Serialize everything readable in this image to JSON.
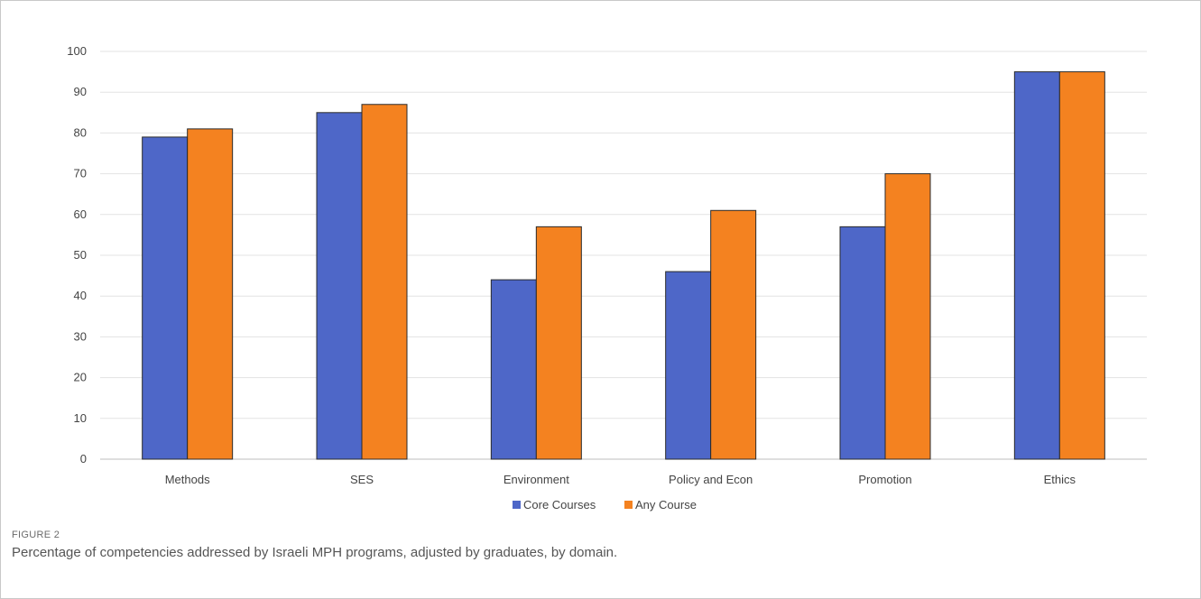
{
  "figure": {
    "label": "FIGURE 2",
    "caption": "Percentage of competencies addressed by Israeli MPH programs, adjusted by graduates, by domain."
  },
  "colors": {
    "core": "#4E67C8",
    "any": "#F48220",
    "grid": "#e3e3e3",
    "text": "#444444"
  },
  "chart_data": {
    "type": "bar",
    "categories": [
      "Methods",
      "SES",
      "Environment",
      "Policy and Econ",
      "Promotion",
      "Ethics"
    ],
    "series": [
      {
        "name": "Core Courses",
        "values": [
          79,
          85,
          44,
          46,
          57,
          95
        ]
      },
      {
        "name": "Any Course",
        "values": [
          81,
          87,
          57,
          61,
          70,
          95
        ]
      }
    ],
    "ylim": [
      0,
      100
    ],
    "yticks": [
      0,
      10,
      20,
      30,
      40,
      50,
      60,
      70,
      80,
      90,
      100
    ],
    "grid": true,
    "legend": "bottom-center"
  }
}
